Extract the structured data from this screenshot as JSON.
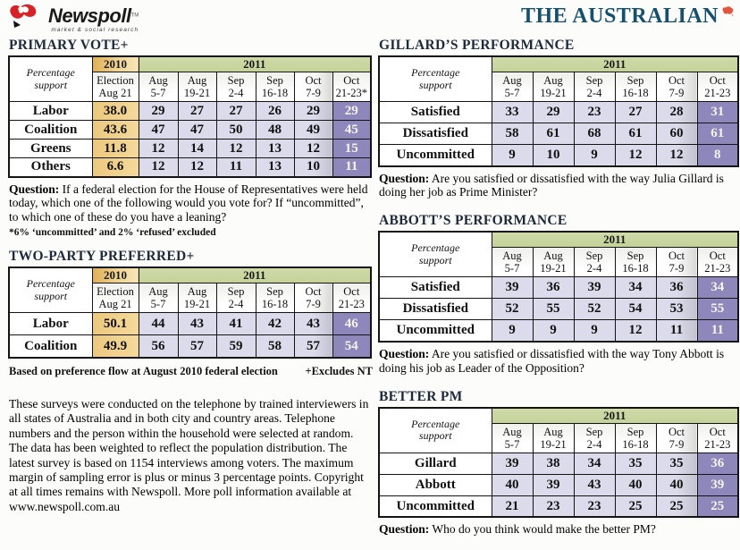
{
  "header": {
    "newspoll": {
      "name": "Newspoll",
      "tm": "TM",
      "tagline": "market & social research"
    },
    "masthead": "THE AUSTRALIAN"
  },
  "colors": {
    "newspoll_red": "#d92128",
    "masthead_blue": "#15516f",
    "gold_2010": "#eecb80",
    "green_2011": "#c9d5a0",
    "lavender_cell": "#dbdbeb",
    "purple_latest": "#8e87bb",
    "purple_text": "#f7f2e6"
  },
  "sections": {
    "primary_vote": {
      "title": "PRIMARY VOTE+",
      "table": {
        "corner_label": "Percentage\nsupport",
        "groups": [
          {
            "label": "2010",
            "span": 1,
            "cls": "g2010"
          },
          {
            "label": "2011",
            "span": 6,
            "cls": "g2011"
          }
        ],
        "columns": [
          "Election\nAug 21",
          "Aug\n5-7",
          "Aug\n19-21",
          "Sep\n2-4",
          "Sep\n16-18",
          "Oct\n7-9",
          "Oct\n21-23*"
        ],
        "gold_col": 0,
        "rows": [
          {
            "label": "Labor",
            "values": [
              "38.0",
              "29",
              "27",
              "27",
              "26",
              "29",
              "29"
            ]
          },
          {
            "label": "Coalition",
            "values": [
              "43.6",
              "47",
              "47",
              "50",
              "48",
              "49",
              "45"
            ]
          },
          {
            "label": "Greens",
            "values": [
              "11.8",
              "12",
              "14",
              "12",
              "13",
              "12",
              "15"
            ]
          },
          {
            "label": "Others",
            "values": [
              "6.6",
              "12",
              "12",
              "11",
              "13",
              "10",
              "11"
            ]
          }
        ]
      },
      "question_label": "Question:",
      "question_text": "If a federal election for the House of Representatives were held today, which one of the following would you vote for? If “uncommitted”, to which one of these do you have a leaning?",
      "footnote": "*6% ‘uncommitted’ and 2% ‘refused’ excluded"
    },
    "two_party": {
      "title": "TWO-PARTY PREFERRED+",
      "table": {
        "corner_label": "Percentage\nsupport",
        "groups": [
          {
            "label": "2010",
            "span": 1,
            "cls": "g2010"
          },
          {
            "label": "2011",
            "span": 6,
            "cls": "g2011"
          }
        ],
        "columns": [
          "Election\nAug 21",
          "Aug\n5-7",
          "Aug\n19-21",
          "Sep\n2-4",
          "Sep\n16-18",
          "Oct\n7-9",
          "Oct\n21-23"
        ],
        "gold_col": 0,
        "rows": [
          {
            "label": "Labor",
            "values": [
              "50.1",
              "44",
              "43",
              "41",
              "42",
              "43",
              "46"
            ]
          },
          {
            "label": "Coalition",
            "values": [
              "49.9",
              "56",
              "57",
              "59",
              "58",
              "57",
              "54"
            ]
          }
        ]
      },
      "footnote_left": "Based on preference flow at August 2010 federal election",
      "footnote_right": "+Excludes NT"
    },
    "methodology": "These surveys were conducted on the telephone by trained interviewers in all states of Australia and in both city and country areas. Telephone numbers and the person within the household were selected at random. The data has been weighted to reflect the population distribution. The latest survey is based on 1154 interviews among voters. The maximum margin of sampling error is plus or minus 3 percentage points. Copyright at all times remains with Newspoll. More poll information available at www.newspoll.com.au",
    "gillard": {
      "title": "GILLARD’S PERFORMANCE",
      "table": {
        "corner_label": "Percentage\nsupport",
        "groups": [
          {
            "label": "2011",
            "span": 6,
            "cls": "g2011"
          }
        ],
        "columns": [
          "Aug\n5-7",
          "Aug\n19-21",
          "Sep\n2-4",
          "Sep\n16-18",
          "Oct\n7-9",
          "Oct\n21-23"
        ],
        "gold_col": -1,
        "rows": [
          {
            "label": "Satisfied",
            "values": [
              "33",
              "29",
              "23",
              "27",
              "28",
              "31"
            ]
          },
          {
            "label": "Dissatisfied",
            "values": [
              "58",
              "61",
              "68",
              "61",
              "60",
              "61"
            ]
          },
          {
            "label": "Uncommitted",
            "values": [
              "9",
              "10",
              "9",
              "12",
              "12",
              "8"
            ]
          }
        ]
      },
      "question_label": "Question:",
      "question_text": "Are you satisfied or dissatisfied with the way Julia Gillard is doing her job as Prime Minister?"
    },
    "abbott": {
      "title": "ABBOTT’S PERFORMANCE",
      "table": {
        "corner_label": "Percentage\nsupport",
        "groups": [
          {
            "label": "2011",
            "span": 6,
            "cls": "g2011"
          }
        ],
        "columns": [
          "Aug\n5-7",
          "Aug\n19-21",
          "Sep\n2-4",
          "Sep\n16-18",
          "Oct\n7-9",
          "Oct\n21-23"
        ],
        "gold_col": -1,
        "rows": [
          {
            "label": "Satisfied",
            "values": [
              "39",
              "36",
              "39",
              "34",
              "36",
              "34"
            ]
          },
          {
            "label": "Dissatisfied",
            "values": [
              "52",
              "55",
              "52",
              "54",
              "53",
              "55"
            ]
          },
          {
            "label": "Uncommitted",
            "values": [
              "9",
              "9",
              "9",
              "12",
              "11",
              "11"
            ]
          }
        ]
      },
      "question_label": "Question:",
      "question_text": "Are you satisfied or dissatisfied with the way Tony Abbott is doing his job as Leader of the Opposition?"
    },
    "better_pm": {
      "title": "BETTER PM",
      "table": {
        "corner_label": "Percentage\nsupport",
        "groups": [
          {
            "label": "2011",
            "span": 6,
            "cls": "g2011"
          }
        ],
        "columns": [
          "Aug\n5-7",
          "Aug\n19-21",
          "Sep\n2-4",
          "Sep\n16-18",
          "Oct\n7-9",
          "Oct\n21-23"
        ],
        "gold_col": -1,
        "rows": [
          {
            "label": "Gillard",
            "values": [
              "39",
              "38",
              "34",
              "35",
              "35",
              "36"
            ]
          },
          {
            "label": "Abbott",
            "values": [
              "40",
              "39",
              "43",
              "40",
              "40",
              "39"
            ]
          },
          {
            "label": "Uncommitted",
            "values": [
              "21",
              "23",
              "23",
              "25",
              "25",
              "25"
            ]
          }
        ]
      },
      "question_label": "Question:",
      "question_text": "Who do you think would make the better PM?"
    }
  }
}
